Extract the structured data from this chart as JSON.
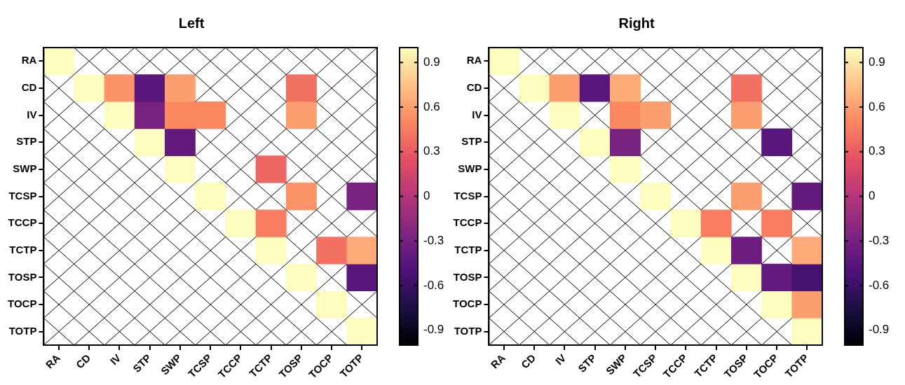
{
  "chart_data": [
    {
      "type": "heatmap",
      "title": "Left",
      "categories": [
        "RA",
        "CD",
        "IV",
        "STP",
        "SWP",
        "TCSP",
        "TCCP",
        "TCTP",
        "TOSP",
        "TOCP",
        "TOTP"
      ],
      "y_categories": [
        "RA",
        "CD",
        "IV",
        "STP",
        "SWP",
        "TCSP",
        "TCCP",
        "TCTP",
        "TOSP",
        "TOCP",
        "TOTP"
      ],
      "cells": [
        [
          1,
          null,
          null,
          null,
          null,
          null,
          null,
          null,
          null,
          null,
          null
        ],
        [
          null,
          1,
          0.55,
          -0.45,
          0.6,
          null,
          null,
          null,
          0.4,
          null,
          null
        ],
        [
          null,
          null,
          1,
          -0.3,
          0.5,
          0.5,
          null,
          null,
          0.6,
          null,
          null
        ],
        [
          null,
          null,
          null,
          1,
          -0.4,
          null,
          null,
          null,
          null,
          null,
          null
        ],
        [
          null,
          null,
          null,
          null,
          1,
          null,
          null,
          0.35,
          null,
          null,
          null
        ],
        [
          null,
          null,
          null,
          null,
          null,
          1,
          null,
          null,
          0.55,
          null,
          -0.3
        ],
        [
          null,
          null,
          null,
          null,
          null,
          null,
          1,
          0.45,
          null,
          null,
          null
        ],
        [
          null,
          null,
          null,
          null,
          null,
          null,
          null,
          1,
          null,
          0.4,
          0.65
        ],
        [
          null,
          null,
          null,
          null,
          null,
          null,
          null,
          null,
          1,
          null,
          -0.45
        ],
        [
          null,
          null,
          null,
          null,
          null,
          null,
          null,
          null,
          null,
          1,
          null
        ],
        [
          null,
          null,
          null,
          null,
          null,
          null,
          null,
          null,
          null,
          null,
          1
        ]
      ],
      "clim": [
        -1,
        1
      ],
      "cticks": [
        -0.9,
        -0.6,
        -0.3,
        0,
        0.3,
        0.6,
        0.9
      ]
    },
    {
      "type": "heatmap",
      "title": "Right",
      "categories": [
        "RA",
        "CD",
        "IV",
        "STP",
        "SWP",
        "TCSP",
        "TCCP",
        "TCTP",
        "TOSP",
        "TOCP",
        "TOTP"
      ],
      "y_categories": [
        "RA",
        "CD",
        "IV",
        "STP",
        "SWP",
        "TCSP",
        "TCCP",
        "TCTP",
        "TOSP",
        "TOCP",
        "TOTP"
      ],
      "cells": [
        [
          1,
          null,
          null,
          null,
          null,
          null,
          null,
          null,
          null,
          null,
          null
        ],
        [
          null,
          1,
          0.6,
          -0.45,
          0.65,
          null,
          null,
          null,
          0.4,
          null,
          null
        ],
        [
          null,
          null,
          1,
          null,
          0.5,
          0.6,
          null,
          null,
          0.6,
          null,
          null
        ],
        [
          null,
          null,
          null,
          1,
          -0.3,
          null,
          null,
          null,
          null,
          -0.45,
          null
        ],
        [
          null,
          null,
          null,
          null,
          1,
          null,
          null,
          null,
          null,
          null,
          null
        ],
        [
          null,
          null,
          null,
          null,
          null,
          1,
          null,
          null,
          0.6,
          null,
          -0.4
        ],
        [
          null,
          null,
          null,
          null,
          null,
          null,
          1,
          0.45,
          null,
          0.45,
          null
        ],
        [
          null,
          null,
          null,
          null,
          null,
          null,
          null,
          1,
          -0.35,
          null,
          0.65
        ],
        [
          null,
          null,
          null,
          null,
          null,
          null,
          null,
          null,
          1,
          -0.4,
          -0.55
        ],
        [
          null,
          null,
          null,
          null,
          null,
          null,
          null,
          null,
          null,
          1,
          0.6
        ],
        [
          null,
          null,
          null,
          null,
          null,
          null,
          null,
          null,
          null,
          null,
          1
        ]
      ],
      "clim": [
        -1,
        1
      ],
      "cticks": [
        -0.9,
        -0.6,
        -0.3,
        0,
        0.3,
        0.6,
        0.9
      ]
    }
  ]
}
